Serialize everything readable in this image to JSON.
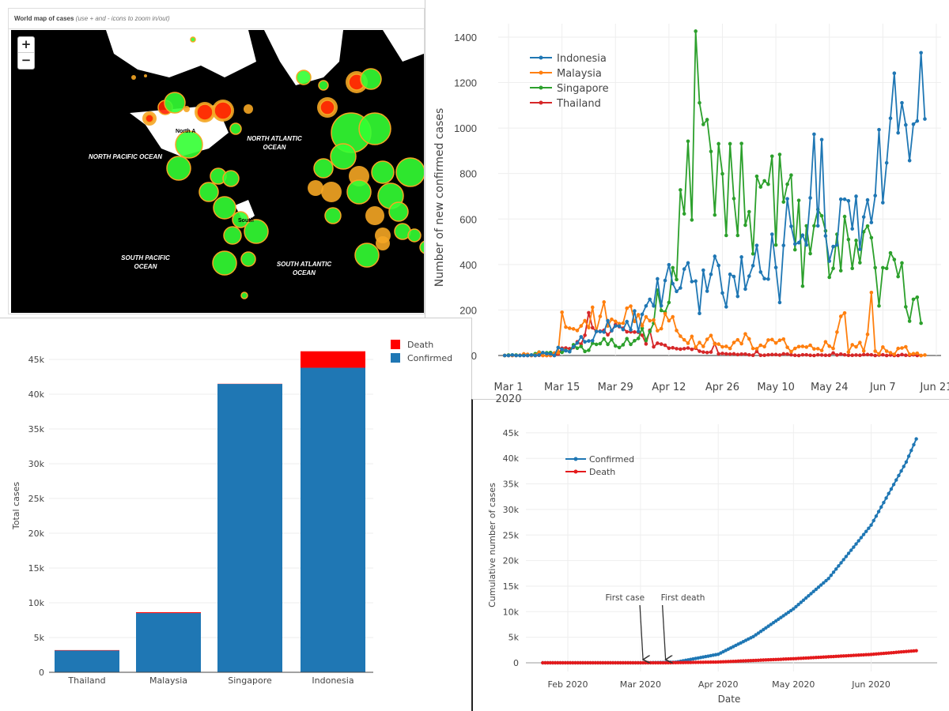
{
  "map": {
    "title": "World map of cases",
    "hint": "(use + and - icons to zoom in/out)",
    "zoom_in": "+",
    "zoom_out": "−",
    "labels": [
      "NORTH PACIFIC OCEAN",
      "NORTH ATLANTIC OCEAN",
      "SOUTH PACIFIC OCEAN",
      "SOUTH ATLANTIC OCEAN",
      "North A",
      "South"
    ],
    "colors": {
      "ocean": "#000000",
      "low": "#33ff33",
      "mid": "#f5a623",
      "high": "#ff2200"
    }
  },
  "chart_data": [
    {
      "type": "line",
      "title": "",
      "ylabel": "Number of new confirmed cases",
      "xlabel": "",
      "start_date": "2020-02-29",
      "ylim": [
        0,
        1400
      ],
      "yticks": [
        0,
        200,
        400,
        600,
        800,
        1000,
        1200,
        1400
      ],
      "xticks": [
        {
          "label": "Mar 1",
          "day": 0,
          "sub": "2020"
        },
        {
          "label": "Mar 15",
          "day": 14
        },
        {
          "label": "Mar 29",
          "day": 28
        },
        {
          "label": "Apr 12",
          "day": 42
        },
        {
          "label": "Apr 26",
          "day": 56
        },
        {
          "label": "May 10",
          "day": 70
        },
        {
          "label": "May 24",
          "day": 84
        },
        {
          "label": "Jun 7",
          "day": 98
        },
        {
          "label": "Jun 21",
          "day": 112
        }
      ],
      "legend_position": "top-left",
      "series": [
        {
          "name": "Indonesia",
          "color": "#1f77b4",
          "values": [
            0,
            0,
            2,
            0,
            0,
            0,
            0,
            2,
            0,
            2,
            13,
            8,
            7,
            0,
            35,
            27,
            21,
            17,
            38,
            55,
            82,
            60,
            64,
            65,
            106,
            105,
            103,
            153,
            109,
            130,
            129,
            114,
            149,
            113,
            196,
            106,
            181,
            218,
            247,
            218,
            337,
            219,
            330,
            399,
            316,
            282,
            297,
            380,
            407,
            325,
            327,
            185,
            375,
            283,
            357,
            436,
            396,
            275,
            214,
            357,
            347,
            260,
            433,
            292,
            349,
            395,
            484,
            367,
            338,
            336,
            533,
            387,
            233,
            484,
            689,
            568,
            490,
            496,
            529,
            486,
            693,
            973,
            570,
            949,
            526,
            415,
            479,
            486,
            687,
            687,
            680,
            557,
            700,
            467,
            609,
            684,
            585,
            703,
            993,
            672,
            847,
            1043,
            1241,
            979,
            1111,
            1014,
            857,
            1017,
            1031,
            1331,
            1040
          ]
        },
        {
          "name": "Malaysia",
          "color": "#ff7f0e",
          "values": [
            0,
            0,
            0,
            0,
            0,
            7,
            5,
            0,
            2,
            14,
            0,
            0,
            1,
            11,
            12,
            190,
            125,
            120,
            117,
            110,
            130,
            153,
            123,
            212,
            106,
            172,
            235,
            130,
            159,
            150,
            140,
            142,
            208,
            217,
            150,
            179,
            131,
            170,
            153,
            156,
            109,
            118,
            184,
            153,
            170,
            110,
            85,
            69,
            54,
            84,
            36,
            57,
            40,
            71,
            88,
            51,
            50,
            38,
            40,
            31,
            57,
            69,
            52,
            95,
            73,
            31,
            30,
            45,
            39,
            68,
            70,
            55,
            67,
            72,
            36,
            17,
            31,
            39,
            40,
            37,
            45,
            29,
            30,
            22,
            60,
            41,
            31,
            103,
            172,
            187,
            15,
            47,
            38,
            57,
            20,
            93,
            277,
            19,
            7,
            37,
            19,
            12,
            5,
            31,
            33,
            38,
            5,
            8,
            10,
            0,
            2
          ]
        },
        {
          "name": "Singapore",
          "color": "#2ca02c",
          "values": [
            0,
            2,
            2,
            2,
            0,
            5,
            4,
            2,
            8,
            15,
            10,
            12,
            13,
            9,
            13,
            14,
            23,
            17,
            47,
            32,
            40,
            18,
            23,
            54,
            49,
            52,
            73,
            49,
            70,
            42,
            35,
            47,
            74,
            49,
            65,
            75,
            120,
            66,
            106,
            142,
            287,
            198,
            191,
            233,
            386,
            334,
            728,
            623,
            942,
            596,
            1426,
            1111,
            1016,
            1037,
            897,
            618,
            931,
            799,
            528,
            931,
            690,
            528,
            932,
            573,
            632,
            447,
            788,
            741,
            768,
            753,
            876,
            486,
            884,
            675,
            753,
            793,
            465,
            682,
            305,
            570,
            448,
            570,
            642,
            614,
            548,
            344,
            383,
            533,
            373,
            611,
            510,
            383,
            506,
            408,
            544,
            569,
            518,
            386,
            218,
            386,
            383,
            451,
            422,
            347,
            407,
            214,
            151,
            247,
            256,
            142
          ]
        },
        {
          "name": "Thailand",
          "color": "#d62728",
          "values": [
            0,
            0,
            0,
            0,
            1,
            0,
            0,
            0,
            0,
            1,
            0,
            0,
            0,
            0,
            7,
            32,
            33,
            30,
            35,
            60,
            50,
            89,
            188,
            122,
            106,
            107,
            111,
            91,
            109,
            136,
            127,
            120,
            104,
            104,
            103,
            102,
            89,
            51,
            111,
            38,
            54,
            50,
            45,
            32,
            34,
            30,
            28,
            30,
            33,
            27,
            32,
            19,
            15,
            13,
            15,
            53,
            7,
            9,
            7,
            6,
            7,
            4,
            6,
            6,
            3,
            1,
            18,
            1,
            1,
            3,
            4,
            4,
            2,
            7,
            6,
            3,
            1,
            0,
            3,
            3,
            1,
            0,
            3,
            2,
            1,
            1,
            11,
            2,
            6,
            3,
            1,
            1,
            2,
            1,
            4,
            4,
            3,
            0,
            2,
            3,
            0,
            2,
            0,
            0,
            4,
            1,
            1,
            3,
            0,
            0
          ]
        }
      ]
    },
    {
      "type": "bar",
      "stacked": true,
      "ylabel": "Total cases",
      "ylim": [
        0,
        47000
      ],
      "yticks": [
        {
          "v": 0,
          "label": "0"
        },
        {
          "v": 5000,
          "label": "5k"
        },
        {
          "v": 10000,
          "label": "10k"
        },
        {
          "v": 15000,
          "label": "15k"
        },
        {
          "v": 20000,
          "label": "20k"
        },
        {
          "v": 25000,
          "label": "25k"
        },
        {
          "v": 30000,
          "label": "30k"
        },
        {
          "v": 35000,
          "label": "35k"
        },
        {
          "v": 40000,
          "label": "40k"
        },
        {
          "v": 45000,
          "label": "45k"
        }
      ],
      "categories": [
        "Thailand",
        "Malaysia",
        "Singapore",
        "Indonesia"
      ],
      "legend_position": "top-right",
      "series": [
        {
          "name": "Confirmed",
          "color": "#1f77b4",
          "values": [
            3135,
            8515,
            41473,
            43803
          ]
        },
        {
          "name": "Death",
          "color": "#ff0000",
          "values": [
            58,
            121,
            26,
            2373
          ]
        }
      ]
    },
    {
      "type": "line",
      "xlabel": "Date",
      "ylabel": "Cumulative number of cases",
      "ylim": [
        0,
        45000
      ],
      "yticks": [
        {
          "v": 0,
          "label": "0"
        },
        {
          "v": 5000,
          "label": "5k"
        },
        {
          "v": 10000,
          "label": "10k"
        },
        {
          "v": 15000,
          "label": "15k"
        },
        {
          "v": 20000,
          "label": "20k"
        },
        {
          "v": 25000,
          "label": "25k"
        },
        {
          "v": 30000,
          "label": "30k"
        },
        {
          "v": 35000,
          "label": "35k"
        },
        {
          "v": 40000,
          "label": "40k"
        },
        {
          "v": 45000,
          "label": "45k"
        }
      ],
      "xticks": [
        {
          "label": "Feb 2020",
          "date": "2020-02-01"
        },
        {
          "label": "Mar 2020",
          "date": "2020-03-01"
        },
        {
          "label": "Apr 2020",
          "date": "2020-04-01"
        },
        {
          "label": "May 2020",
          "date": "2020-05-01"
        },
        {
          "label": "Jun 2020",
          "date": "2020-06-01"
        }
      ],
      "legend_position": "top-left",
      "series": [
        {
          "name": "Confirmed",
          "color": "#1f77b4",
          "points": [
            [
              "2020-01-22",
              0
            ],
            [
              "2020-03-01",
              0
            ],
            [
              "2020-03-02",
              2
            ],
            [
              "2020-03-15",
              117
            ],
            [
              "2020-04-01",
              1677
            ],
            [
              "2020-04-15",
              5136
            ],
            [
              "2020-05-01",
              10551
            ],
            [
              "2020-05-15",
              16496
            ],
            [
              "2020-06-01",
              26940
            ],
            [
              "2020-06-15",
              39294
            ],
            [
              "2020-06-19",
              43803
            ]
          ]
        },
        {
          "name": "Death",
          "color": "#e41a1c",
          "points": [
            [
              "2020-01-22",
              0
            ],
            [
              "2020-03-10",
              0
            ],
            [
              "2020-03-11",
              1
            ],
            [
              "2020-04-01",
              157
            ],
            [
              "2020-05-01",
              800
            ],
            [
              "2020-06-01",
              1641
            ],
            [
              "2020-06-19",
              2373
            ]
          ]
        }
      ],
      "annotations": [
        {
          "text": "First case",
          "date": "2020-03-02"
        },
        {
          "text": "First death",
          "date": "2020-03-11"
        }
      ]
    }
  ]
}
